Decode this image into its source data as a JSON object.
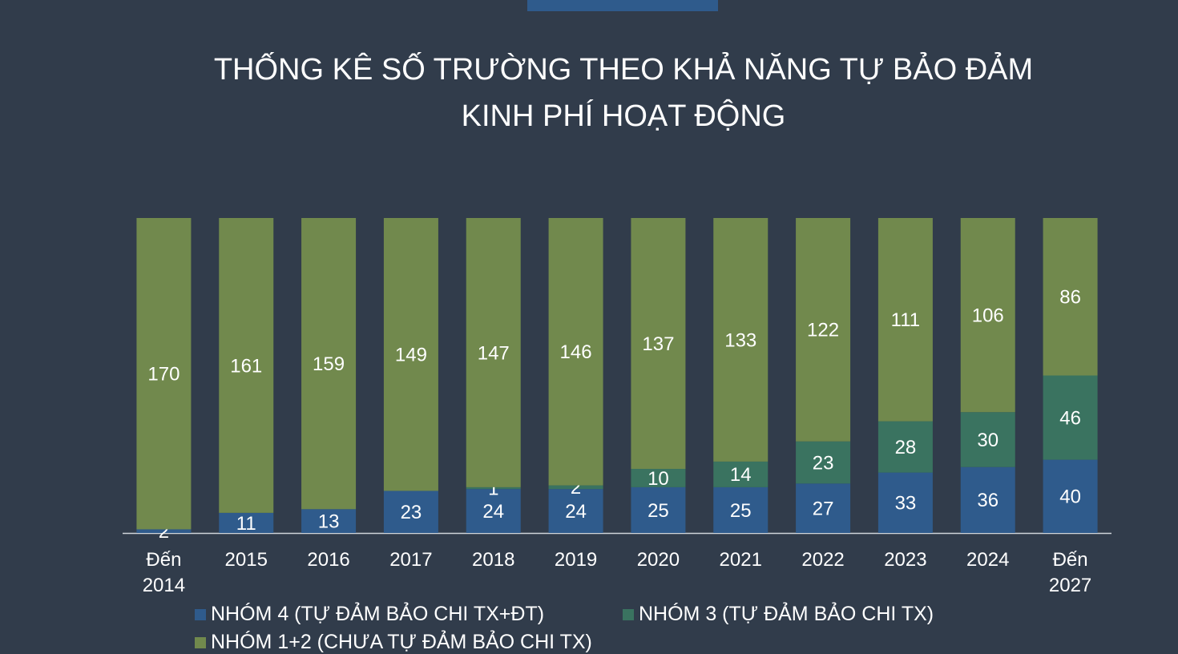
{
  "chart_data": {
    "type": "stacked_bar",
    "title": "THỐNG KÊ SỐ TRƯỜNG THEO KHẢ NĂNG TỰ BẢO ĐẢM KINH PHÍ HOẠT ĐỘNG",
    "categories": [
      "Đến 2014",
      "2015",
      "2016",
      "2017",
      "2018",
      "2019",
      "2020",
      "2021",
      "2022",
      "2023",
      "2024",
      "Đến 2027"
    ],
    "series": [
      {
        "name": "NHÓM 4 (TỰ ĐẢM BẢO CHI TX+ĐT)",
        "color": "#2f5b8c",
        "values": [
          2,
          11,
          13,
          23,
          24,
          24,
          25,
          25,
          27,
          33,
          36,
          40
        ]
      },
      {
        "name": "NHÓM 3 (TỰ ĐẢM BẢO CHI TX)",
        "color": "#3a7360",
        "values": [
          null,
          null,
          null,
          null,
          1,
          2,
          10,
          14,
          23,
          28,
          30,
          46
        ]
      },
      {
        "name": "NHÓM 1+2 (CHƯA TỰ ĐẢM BẢO CHI TX)",
        "color": "#71894d",
        "values": [
          170,
          161,
          159,
          149,
          147,
          146,
          137,
          133,
          122,
          111,
          106,
          86
        ]
      }
    ],
    "ylim": [
      0,
      172
    ]
  }
}
